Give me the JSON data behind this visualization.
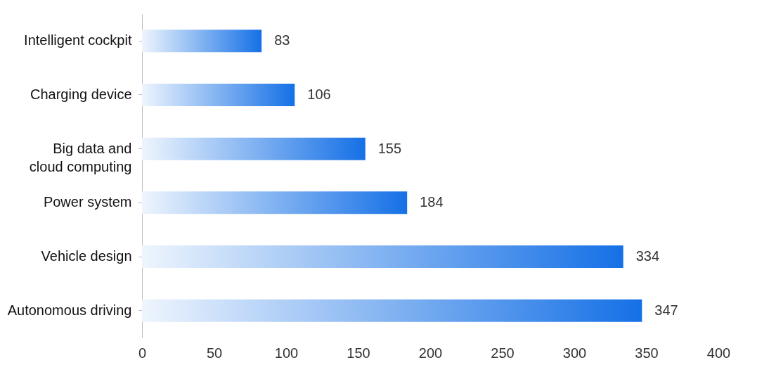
{
  "chart_data": {
    "type": "bar",
    "orientation": "horizontal",
    "categories": [
      "Intelligent cockpit",
      "Charging device",
      "Big data and cloud computing",
      "Power system",
      "Vehicle design",
      "Autonomous driving"
    ],
    "values": [
      83,
      106,
      155,
      184,
      334,
      347
    ],
    "color": "#1570e6",
    "xlim": [
      0,
      400
    ],
    "xticks": [
      0,
      50,
      100,
      150,
      200,
      250,
      300,
      350,
      400
    ],
    "data_labels": true
  }
}
